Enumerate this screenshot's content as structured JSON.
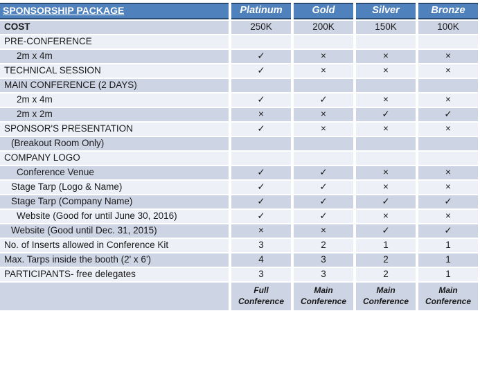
{
  "colors": {
    "header_bg": "#4F81BD",
    "header_border": "#2B4A72",
    "band_dark": "#CDD4E4",
    "band_light": "#EDF0F7",
    "text": "#1A1A1A",
    "header_text": "#FFFFFF"
  },
  "chart_data": {
    "type": "table",
    "title": "SPONSORSHIP PACKAGE",
    "header": {
      "label": "SPONSORSHIP PACKAGE",
      "columns": [
        "Platinum",
        "Gold",
        "Silver",
        "Bronze"
      ]
    },
    "rows": [
      {
        "label": "COST",
        "bold": true,
        "indent": 0,
        "values": [
          "250K",
          "200K",
          "150K",
          "100K"
        ]
      },
      {
        "label": "PRE-CONFERENCE",
        "indent": 0,
        "values": [
          "",
          "",
          "",
          ""
        ]
      },
      {
        "label": "2m x 4m",
        "indent": 2,
        "values": [
          "✓",
          "×",
          "×",
          "×"
        ]
      },
      {
        "label": "TECHNICAL SESSION",
        "indent": 0,
        "values": [
          "✓",
          "×",
          "×",
          "×"
        ]
      },
      {
        "label": "MAIN CONFERENCE  (2 DAYS)",
        "indent": 0,
        "values": [
          "",
          "",
          "",
          ""
        ]
      },
      {
        "label": "2m x 4m",
        "indent": 2,
        "values": [
          "✓",
          "✓",
          "×",
          "×"
        ]
      },
      {
        "label": "2m x 2m",
        "indent": 2,
        "values": [
          "×",
          "×",
          "✓",
          "✓"
        ]
      },
      {
        "label": "SPONSOR'S PRESENTATION",
        "indent": 0,
        "values": [
          "✓",
          "×",
          "×",
          "×"
        ]
      },
      {
        "label": "(Breakout Room Only)",
        "indent": 1,
        "values": [
          "",
          "",
          "",
          ""
        ]
      },
      {
        "label": "COMPANY LOGO",
        "indent": 0,
        "values": [
          "",
          "",
          "",
          ""
        ]
      },
      {
        "label": "Conference Venue",
        "indent": 2,
        "values": [
          "✓",
          "✓",
          "×",
          "×"
        ]
      },
      {
        "label": "Stage Tarp (Logo & Name)",
        "indent": 1,
        "values": [
          "✓",
          "✓",
          "×",
          "×"
        ]
      },
      {
        "label": "Stage Tarp (Company Name)",
        "indent": 1,
        "values": [
          "✓",
          "✓",
          "✓",
          "✓"
        ]
      },
      {
        "label": "Website (Good for until  June 30, 2016)",
        "indent": 2,
        "values": [
          "✓",
          "✓",
          "×",
          "×"
        ]
      },
      {
        "label": "Website (Good until  Dec. 31, 2015)",
        "indent": 1,
        "values": [
          "×",
          "×",
          "✓",
          "✓"
        ]
      },
      {
        "label": "No. of Inserts allowed  in Conference Kit",
        "indent": 0,
        "values": [
          "3",
          "2",
          "1",
          "1"
        ]
      },
      {
        "label": "Max. Tarps inside the booth  (2' x 6')",
        "indent": 0,
        "values": [
          "4",
          "3",
          "2",
          "1"
        ]
      },
      {
        "label": "PARTICIPANTS- free delegates",
        "indent": 0,
        "values": [
          "3",
          "3",
          "2",
          "1"
        ]
      },
      {
        "label": "",
        "indent": 0,
        "footer": true,
        "values": [
          "Full Conference",
          "Main Conference",
          "Main Conference",
          "Main Conference"
        ]
      }
    ]
  }
}
